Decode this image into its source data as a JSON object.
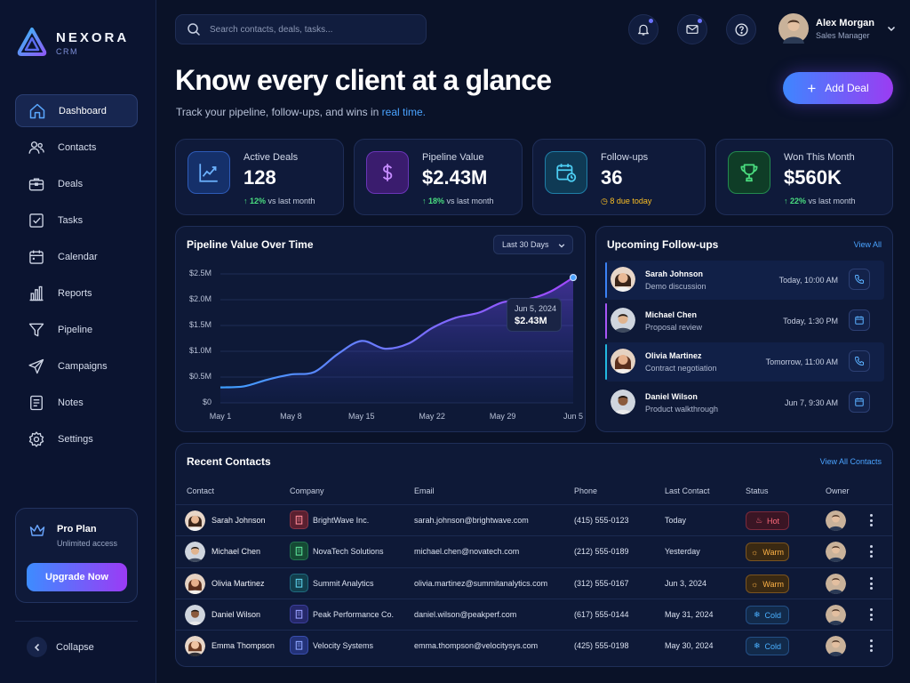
{
  "brand": {
    "name": "NEXORA",
    "sub": "CRM"
  },
  "nav": [
    {
      "label": "Dashboard",
      "icon": "home-icon",
      "active": true
    },
    {
      "label": "Contacts",
      "icon": "users-icon"
    },
    {
      "label": "Deals",
      "icon": "briefcase-icon"
    },
    {
      "label": "Tasks",
      "icon": "checkbox-icon"
    },
    {
      "label": "Calendar",
      "icon": "calendar-icon"
    },
    {
      "label": "Reports",
      "icon": "bar-chart-icon"
    },
    {
      "label": "Pipeline",
      "icon": "funnel-icon"
    },
    {
      "label": "Campaigns",
      "icon": "send-icon"
    },
    {
      "label": "Notes",
      "icon": "note-icon"
    },
    {
      "label": "Settings",
      "icon": "gear-icon"
    }
  ],
  "pro": {
    "title": "Pro Plan",
    "subtitle": "Unlimited access",
    "button": "Upgrade Now"
  },
  "collapse_label": "Collapse",
  "search": {
    "placeholder": "Search contacts, deals, tasks..."
  },
  "user": {
    "name": "Alex Morgan",
    "role": "Sales Manager"
  },
  "hero": {
    "title": "Know every client at a glance",
    "subtitle_pre": "Track your pipeline, follow-ups, and wins in ",
    "subtitle_highlight": "real time."
  },
  "add_deal": "Add Deal",
  "stats": [
    {
      "label": "Active Deals",
      "value": "128",
      "change": "12%",
      "change_suffix": "vs last month",
      "icon": "trend-chart-icon",
      "color": "#3b82f6"
    },
    {
      "label": "Pipeline Value",
      "value": "$2.43M",
      "change": "18%",
      "change_suffix": "vs last month",
      "icon": "dollar-icon",
      "color": "#a855f7"
    },
    {
      "label": "Follow-ups",
      "value": "36",
      "change": "8 due today",
      "change_suffix": "",
      "icon": "calendar-clock-icon",
      "color": "#22b8e0"
    },
    {
      "label": "Won This Month",
      "value": "$560K",
      "change": "22%",
      "change_suffix": "vs last month",
      "icon": "trophy-icon",
      "color": "#22c55e"
    }
  ],
  "chart_panel": {
    "title": "Pipeline Value Over Time",
    "range": "Last 30 Days",
    "tooltip_date": "Jun 5, 2024",
    "tooltip_value": "$2.43M"
  },
  "chart_data": {
    "type": "area",
    "x": [
      "May 1",
      "May 3",
      "May 5",
      "May 8",
      "May 10",
      "May 12",
      "May 15",
      "May 17",
      "May 19",
      "May 22",
      "May 24",
      "May 26",
      "May 29",
      "May 31",
      "Jun 2",
      "Jun 5"
    ],
    "values": [
      0.3,
      0.32,
      0.45,
      0.55,
      0.6,
      0.95,
      1.2,
      1.05,
      1.15,
      1.45,
      1.65,
      1.75,
      1.95,
      2.0,
      2.15,
      2.43
    ],
    "xticks": [
      "May 1",
      "May 8",
      "May 15",
      "May 22",
      "May 29",
      "Jun 5"
    ],
    "yticks": [
      "$0",
      "$0.5M",
      "$1.0M",
      "$1.5M",
      "$2.0M",
      "$2.5M"
    ],
    "ylim": [
      0,
      2.5
    ],
    "grid": true,
    "colors": {
      "line_start": "#3ea0ff",
      "line_end": "#a349ff"
    }
  },
  "followups": {
    "title": "Upcoming Follow-ups",
    "view_all": "View All",
    "items": [
      {
        "name": "Sarah Johnson",
        "desc": "Demo discussion",
        "time": "Today, 10:00 AM",
        "action": "phone-icon",
        "bar": "#3b82f6"
      },
      {
        "name": "Michael Chen",
        "desc": "Proposal review",
        "time": "Today, 1:30 PM",
        "action": "calendar-icon",
        "bar": "#a855f7"
      },
      {
        "name": "Olivia Martinez",
        "desc": "Contract negotiation",
        "time": "Tomorrow, 11:00 AM",
        "action": "phone-icon",
        "bar": "#22b8e0"
      },
      {
        "name": "Daniel Wilson",
        "desc": "Product walkthrough",
        "time": "Jun 7, 9:30 AM",
        "action": "calendar-icon",
        "bar": ""
      }
    ]
  },
  "contacts": {
    "title": "Recent Contacts",
    "view_all": "View All Contacts",
    "columns": [
      "Contact",
      "Company",
      "Email",
      "Phone",
      "Last Contact",
      "Status",
      "Owner"
    ],
    "rows": [
      {
        "name": "Sarah Johnson",
        "company": "BrightWave Inc.",
        "email": "sarah.johnson@brightwave.com",
        "phone": "(415) 555-0123",
        "last": "Today",
        "status": "Hot",
        "co_color": "#7a2a3c"
      },
      {
        "name": "Michael Chen",
        "company": "NovaTech Solutions",
        "email": "michael.chen@novatech.com",
        "phone": "(212) 555-0189",
        "last": "Yesterday",
        "status": "Warm",
        "co_color": "#1d6b4a"
      },
      {
        "name": "Olivia Martinez",
        "company": "Summit Analytics",
        "email": "olivia.martinez@summitanalytics.com",
        "phone": "(312) 555-0167",
        "last": "Jun 3, 2024",
        "status": "Warm",
        "co_color": "#1b5d6e"
      },
      {
        "name": "Daniel Wilson",
        "company": "Peak Performance Co.",
        "email": "daniel.wilson@peakperf.com",
        "phone": "(617) 555-0144",
        "last": "May 31, 2024",
        "status": "Cold",
        "co_color": "#3a3a8a"
      },
      {
        "name": "Emma Thompson",
        "company": "Velocity Systems",
        "email": "emma.thompson@velocitysys.com",
        "phone": "(425) 555-0198",
        "last": "May 30, 2024",
        "status": "Cold",
        "co_color": "#2f3f8a"
      }
    ]
  }
}
